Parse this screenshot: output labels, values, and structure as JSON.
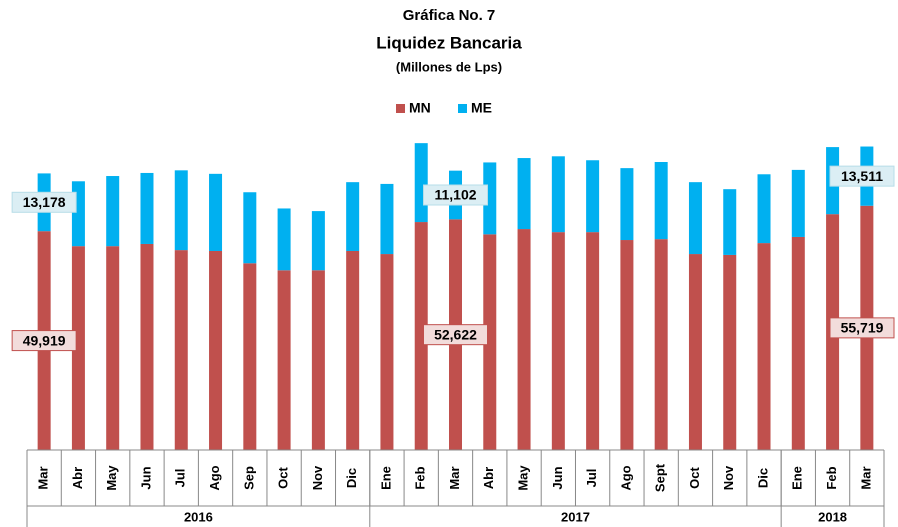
{
  "chart_data": {
    "type": "bar",
    "stacked": true,
    "title": "Gráfica No. 7",
    "subtitle": "Liquidez Bancaria",
    "unit_label": "(Millones de Lps)",
    "categories": [
      "Mar",
      "Abr",
      "May",
      "Jun",
      "Jul",
      "Ago",
      "Sep",
      "Oct",
      "Nov",
      "Dic",
      "Ene",
      "Feb",
      "Mar",
      "Abr",
      "May",
      "Jun",
      "Jul",
      "Ago",
      "Sept",
      "Oct",
      "Nov",
      "Dic",
      "Ene",
      "Feb",
      "Mar"
    ],
    "groups": [
      {
        "label": "2016",
        "count": 10
      },
      {
        "label": "2017",
        "count": 12
      },
      {
        "label": "2018",
        "count": 3
      }
    ],
    "series": [
      {
        "name": "MN",
        "color": "#c0504d",
        "values": [
          49919,
          46500,
          46500,
          47000,
          45600,
          45400,
          42600,
          41000,
          41000,
          45400,
          44700,
          52000,
          52622,
          49200,
          50400,
          49700,
          49700,
          47900,
          48100,
          44700,
          44500,
          47200,
          48600,
          53800,
          55719
        ],
        "value_labels": [
          "49,919",
          null,
          null,
          null,
          null,
          null,
          null,
          null,
          null,
          null,
          null,
          null,
          "52,622",
          null,
          null,
          null,
          null,
          null,
          null,
          null,
          null,
          null,
          null,
          null,
          "55,719"
        ]
      },
      {
        "name": "ME",
        "color": "#00b0f0",
        "values": [
          13178,
          14800,
          16000,
          16200,
          18200,
          17600,
          16200,
          14100,
          13500,
          15700,
          16000,
          18000,
          11102,
          16400,
          16200,
          17300,
          16400,
          16400,
          17600,
          16400,
          15000,
          15700,
          15300,
          15300,
          13511
        ],
        "value_labels": [
          "13,178",
          null,
          null,
          null,
          null,
          null,
          null,
          null,
          null,
          null,
          null,
          null,
          "11,102",
          null,
          null,
          null,
          null,
          null,
          null,
          null,
          null,
          null,
          null,
          null,
          "13,511"
        ]
      }
    ],
    "ylim": [
      0,
      73000
    ],
    "legend": "top"
  }
}
